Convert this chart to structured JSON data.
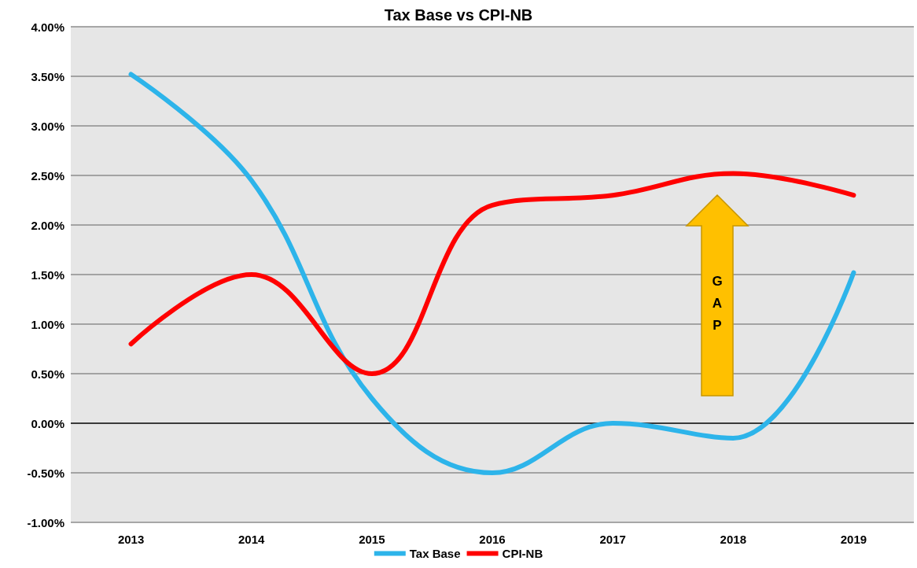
{
  "chart_data": {
    "type": "line",
    "title": "Tax Base vs CPI-NB",
    "categories": [
      "2013",
      "2014",
      "2015",
      "2016",
      "2017",
      "2018",
      "2019"
    ],
    "series": [
      {
        "name": "Tax Base",
        "color": "#2db4ea",
        "values": [
          3.52,
          2.45,
          0.25,
          -0.5,
          0.0,
          -0.15,
          1.52
        ]
      },
      {
        "name": "CPI-NB",
        "color": "#ff0000",
        "values": [
          0.8,
          1.5,
          0.5,
          2.2,
          2.3,
          2.52,
          2.3
        ]
      }
    ],
    "ylim": [
      -1,
      4
    ],
    "yticks": [
      {
        "value": -1,
        "label": "-1.00%"
      },
      {
        "value": -0.5,
        "label": "-0.50%"
      },
      {
        "value": 0,
        "label": "0.00%"
      },
      {
        "value": 0.5,
        "label": "0.50%"
      },
      {
        "value": 1,
        "label": "1.00%"
      },
      {
        "value": 1.5,
        "label": "1.50%"
      },
      {
        "value": 2,
        "label": "2.00%"
      },
      {
        "value": 2.5,
        "label": "2.50%"
      },
      {
        "value": 3,
        "label": "3.00%"
      },
      {
        "value": 3.5,
        "label": "3.50%"
      },
      {
        "value": 4,
        "label": "4.00%"
      }
    ],
    "grid": "y",
    "legend": "bottom",
    "marker": "none",
    "line_style": "solid",
    "annotations": [
      "GAP"
    ]
  }
}
